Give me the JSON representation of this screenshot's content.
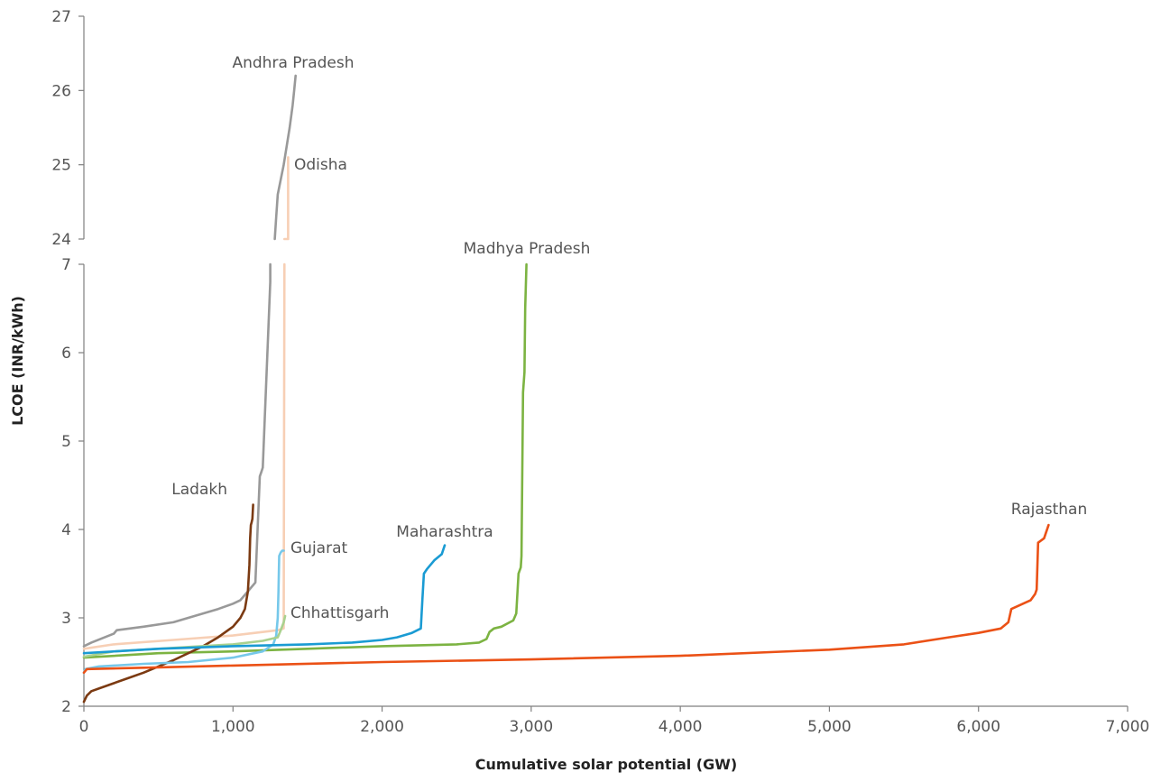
{
  "chart_data": {
    "type": "line",
    "title": "",
    "xlabel": "Cumulative solar potential (GW)",
    "ylabel": "LCOE (INR/kWh)",
    "xlim": [
      0,
      7000
    ],
    "x_ticks": [
      "0",
      "1,000",
      "2,000",
      "3,000",
      "4,000",
      "5,000",
      "6,000",
      "7,000"
    ],
    "y_axis_break": {
      "lower_segment": [
        2,
        7
      ],
      "upper_segment": [
        24,
        27
      ]
    },
    "y_ticks_lower": [
      "2",
      "3",
      "4",
      "5",
      "6",
      "7"
    ],
    "y_ticks_upper": [
      "24",
      "25",
      "26",
      "27"
    ],
    "grid": false,
    "legend": "inline labels",
    "series": [
      {
        "name": "Andhra Pradesh",
        "color": "#999999",
        "x": [
          0,
          50,
          200,
          220,
          400,
          600,
          700,
          900,
          1000,
          1050,
          1100,
          1150,
          1180,
          1190,
          1200,
          1250,
          1250,
          1280,
          1290,
          1300,
          1320,
          1340,
          1380,
          1400,
          1410,
          1420
        ],
        "y": [
          2.68,
          2.72,
          2.82,
          2.86,
          2.9,
          2.95,
          3.0,
          3.1,
          3.16,
          3.2,
          3.3,
          3.4,
          4.6,
          4.65,
          4.7,
          6.8,
          7.0,
          24.0,
          24.3,
          24.6,
          24.8,
          25.0,
          25.5,
          25.8,
          26.0,
          26.2
        ]
      },
      {
        "name": "Odisha",
        "color": "#f7cfb5",
        "x": [
          0,
          200,
          600,
          1000,
          1300,
          1340,
          1345,
          1345,
          1370,
          1370
        ],
        "y": [
          2.65,
          2.7,
          2.75,
          2.8,
          2.86,
          2.88,
          7.0,
          24.0,
          24.0,
          25.1
        ]
      },
      {
        "name": "Madhya Pradesh",
        "color": "#7cb342",
        "x": [
          0,
          500,
          1000,
          1500,
          2000,
          2500,
          2650,
          2700,
          2720,
          2750,
          2800,
          2880,
          2900,
          2915,
          2930,
          2935,
          2945,
          2955,
          2960,
          2968
        ],
        "y": [
          2.55,
          2.6,
          2.62,
          2.65,
          2.68,
          2.7,
          2.72,
          2.76,
          2.84,
          2.88,
          2.9,
          2.97,
          3.05,
          3.5,
          3.57,
          3.7,
          5.55,
          5.78,
          6.5,
          7.0
        ]
      },
      {
        "name": "Ladakh",
        "color": "#7b3a12",
        "x": [
          0,
          20,
          50,
          100,
          200,
          300,
          400,
          500,
          600,
          700,
          800,
          900,
          1000,
          1050,
          1080,
          1100,
          1110,
          1115,
          1120,
          1125,
          1130,
          1135
        ],
        "y": [
          2.05,
          2.12,
          2.17,
          2.2,
          2.26,
          2.32,
          2.38,
          2.45,
          2.52,
          2.6,
          2.68,
          2.78,
          2.9,
          3.0,
          3.1,
          3.3,
          3.6,
          3.9,
          4.05,
          4.08,
          4.12,
          4.28
        ]
      },
      {
        "name": "Gujarat",
        "color": "#76c8ea",
        "x": [
          0,
          10,
          100,
          400,
          700,
          1000,
          1200,
          1270,
          1290,
          1300,
          1305,
          1310,
          1320,
          1330,
          1340
        ],
        "y": [
          2.38,
          2.42,
          2.45,
          2.48,
          2.5,
          2.55,
          2.62,
          2.7,
          2.8,
          3.0,
          3.3,
          3.7,
          3.74,
          3.76,
          3.76
        ]
      },
      {
        "name": "Chhattisgarh",
        "color": "#a9d18e",
        "x": [
          0,
          200,
          600,
          1000,
          1200,
          1300,
          1320,
          1340,
          1350
        ],
        "y": [
          2.56,
          2.62,
          2.66,
          2.7,
          2.74,
          2.78,
          2.86,
          2.95,
          3.02
        ]
      },
      {
        "name": "Maharashtra",
        "color": "#1a9bd3",
        "x": [
          0,
          500,
          1000,
          1500,
          1800,
          2000,
          2100,
          2200,
          2260,
          2270,
          2280,
          2300,
          2350,
          2400,
          2420
        ],
        "y": [
          2.6,
          2.65,
          2.68,
          2.7,
          2.72,
          2.75,
          2.78,
          2.83,
          2.88,
          3.2,
          3.5,
          3.55,
          3.65,
          3.72,
          3.82
        ]
      },
      {
        "name": "Rajasthan",
        "color": "#eb5116",
        "x": [
          0,
          20,
          500,
          1000,
          2000,
          3000,
          4000,
          5000,
          5500,
          5800,
          6000,
          6150,
          6200,
          6220,
          6350,
          6380,
          6390,
          6400,
          6440,
          6470
        ],
        "y": [
          2.38,
          2.42,
          2.44,
          2.46,
          2.5,
          2.53,
          2.57,
          2.64,
          2.7,
          2.78,
          2.83,
          2.88,
          2.95,
          3.1,
          3.2,
          3.27,
          3.32,
          3.85,
          3.9,
          4.05
        ]
      }
    ],
    "series_labels": [
      {
        "text": "Andhra Pradesh"
      },
      {
        "text": "Odisha"
      },
      {
        "text": "Madhya Pradesh"
      },
      {
        "text": "Ladakh"
      },
      {
        "text": "Gujarat"
      },
      {
        "text": "Maharashtra"
      },
      {
        "text": "Chhattisgarh"
      },
      {
        "text": "Rajasthan"
      }
    ]
  }
}
